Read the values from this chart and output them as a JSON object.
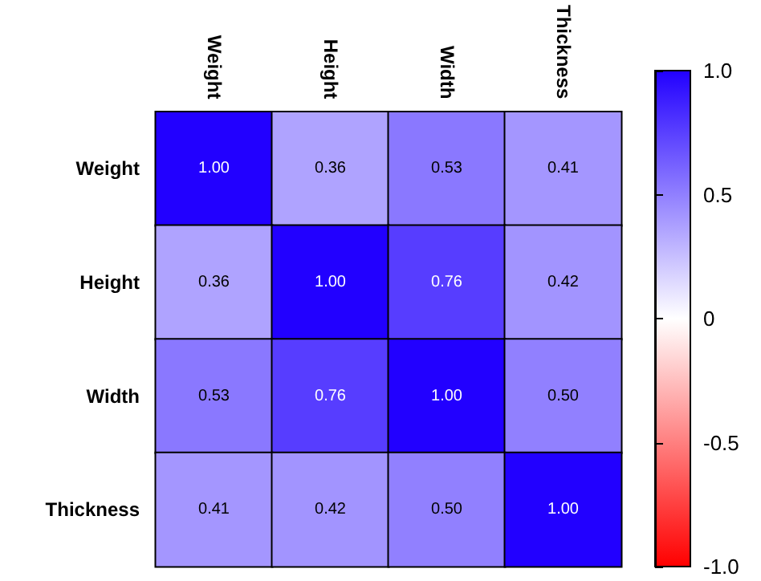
{
  "chart_data": {
    "type": "heatmap",
    "categories": [
      "Weight",
      "Height",
      "Width",
      "Thickness"
    ],
    "y_categories": [
      "Weight",
      "Height",
      "Width",
      "Thickness"
    ],
    "cells": [
      [
        1.0,
        0.36,
        0.53,
        0.41
      ],
      [
        0.36,
        1.0,
        0.76,
        0.42
      ],
      [
        0.53,
        0.76,
        1.0,
        0.5
      ],
      [
        0.41,
        0.42,
        0.5,
        1.0
      ]
    ],
    "cell_labels": [
      [
        "1.00",
        "0.36",
        "0.53",
        "0.41"
      ],
      [
        "0.36",
        "1.00",
        "0.76",
        "0.42"
      ],
      [
        "0.53",
        "0.76",
        "1.00",
        "0.50"
      ],
      [
        "0.41",
        "0.42",
        "0.50",
        "1.00"
      ]
    ],
    "clim": [
      -1,
      1
    ],
    "cticks": [
      {
        "value": -1,
        "label": "-1.0"
      },
      {
        "value": -0.5,
        "label": "-0.5"
      },
      {
        "value": 0,
        "label": "0"
      },
      {
        "value": 0.5,
        "label": "0.5"
      },
      {
        "value": 1,
        "label": "1.0"
      }
    ],
    "colors": [
      "#ff0000",
      "#ffffff",
      "#2200ff"
    ]
  }
}
